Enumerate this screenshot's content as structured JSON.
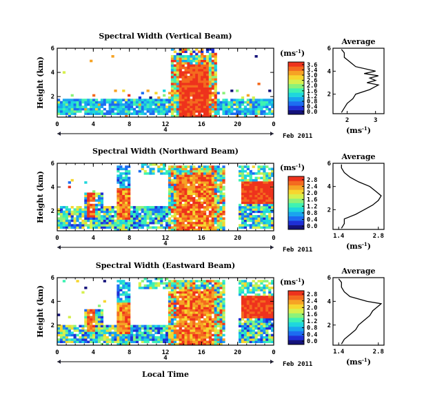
{
  "figure": {
    "xlabel": "Local Time",
    "date_label": "Feb 2011",
    "day_marker": "4",
    "avg_title": "Average",
    "avg_xunit": "(ms",
    "unit_exp": "-1",
    "cb_unit": "(ms",
    "colors": [
      "#14127a",
      "#1f2fd6",
      "#1c6cf2",
      "#19a5ee",
      "#1ed7dd",
      "#3ef2b2",
      "#8cf27a",
      "#d6f04e",
      "#f6d62e",
      "#f6a324",
      "#f46a1e",
      "#ee321c"
    ]
  },
  "chart_data": [
    {
      "type": "heatmap",
      "title": "Spectral Width (Vertical Beam)",
      "ylabel": "Height (km)",
      "x_ticks": [
        "0",
        "4",
        "8",
        "12",
        "16",
        "20",
        "0"
      ],
      "y_ticks": [
        "6",
        "4",
        "2"
      ],
      "xlim": [
        0,
        24
      ],
      "ylim": [
        0.3,
        6
      ],
      "colorbar": {
        "min": 0.0,
        "max": 3.6,
        "ticks": [
          "3.6",
          "3.4",
          "3.0",
          "2.6",
          "2.0",
          "1.6",
          "1.2",
          "0.8",
          "0.4",
          "0.0"
        ]
      },
      "avg_profile": {
        "x_ticks": [
          "2",
          "3"
        ],
        "x_range": [
          1.5,
          3.3
        ],
        "height": [
          0.4,
          0.8,
          1.2,
          1.6,
          2.0,
          2.4,
          2.8,
          3.0,
          3.2,
          3.4,
          3.6,
          3.8,
          4.0,
          4.4,
          4.8,
          5.2,
          5.6,
          5.9
        ],
        "value": [
          1.8,
          1.9,
          2.0,
          2.2,
          2.3,
          2.8,
          3.1,
          2.7,
          3.0,
          2.8,
          3.1,
          2.6,
          3.0,
          2.3,
          2.1,
          1.9,
          1.9,
          1.8
        ]
      },
      "rows": [
        "------------------------------------------------------------",
        "-----------------------------------.-----------------------",
        "--------------------------------------.--------------------",
        "----------------------------------------------------------- ",
        "-----------------------------------------------------------",
        "----------------------------------------------------------- ",
        "-----------------------------------------------------------",
        "-----------------------------------------------------------"
      ]
    },
    {
      "type": "heatmap",
      "title": "Spectral Width (Northward Beam)",
      "ylabel": "Height (km)",
      "x_ticks": [
        "0",
        "4",
        "8",
        "12",
        "16",
        "20",
        "0"
      ],
      "y_ticks": [
        "6",
        "4",
        "2"
      ],
      "xlim": [
        0,
        24
      ],
      "ylim": [
        0.3,
        6
      ],
      "colorbar": {
        "min": 0.0,
        "max": 2.8,
        "ticks": [
          "2.8",
          "2.4",
          "2.0",
          "1.6",
          "1.2",
          "0.8",
          "0.4",
          "0.0"
        ]
      },
      "avg_profile": {
        "x_ticks": [
          "1.4",
          "2.8"
        ],
        "x_range": [
          1.2,
          3.0
        ],
        "height": [
          0.4,
          0.8,
          1.2,
          1.6,
          2.0,
          2.4,
          2.8,
          3.2,
          3.6,
          4.0,
          4.4,
          4.8,
          5.2,
          5.6,
          5.9
        ],
        "value": [
          1.5,
          1.6,
          1.6,
          2.0,
          2.3,
          2.6,
          2.8,
          2.9,
          2.7,
          2.5,
          2.1,
          1.8,
          1.6,
          1.5,
          1.5
        ]
      }
    },
    {
      "type": "heatmap",
      "title": "Spectral Width (Eastward Beam)",
      "ylabel": "Height (km)",
      "x_ticks": [
        "0",
        "4",
        "8",
        "12",
        "16",
        "20",
        "0"
      ],
      "y_ticks": [
        "6",
        "4",
        "2"
      ],
      "xlim": [
        0,
        24
      ],
      "ylim": [
        0.3,
        6
      ],
      "colorbar": {
        "min": 0.0,
        "max": 2.8,
        "ticks": [
          "2.8",
          "2.4",
          "2.0",
          "1.6",
          "1.2",
          "0.8",
          "0.4",
          "0.0"
        ]
      },
      "avg_profile": {
        "x_ticks": [
          "1.4",
          "2.8"
        ],
        "x_range": [
          1.2,
          3.0
        ],
        "height": [
          0.4,
          0.8,
          1.2,
          1.6,
          2.0,
          2.4,
          2.8,
          3.2,
          3.6,
          3.8,
          4.0,
          4.4,
          4.8,
          5.2,
          5.6,
          5.9
        ],
        "value": [
          1.5,
          1.6,
          1.8,
          2.0,
          2.1,
          2.3,
          2.5,
          2.6,
          2.8,
          2.9,
          2.4,
          1.8,
          1.6,
          1.5,
          1.5,
          1.4
        ]
      }
    }
  ]
}
